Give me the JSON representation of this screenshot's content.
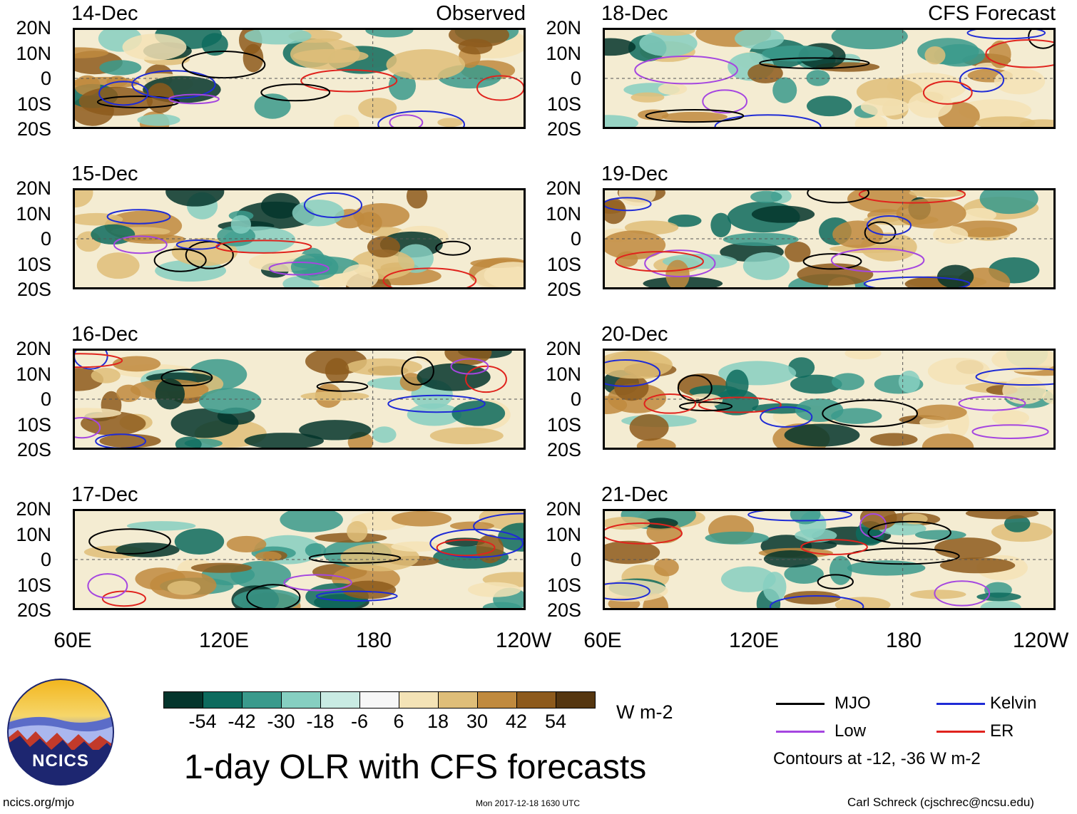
{
  "figure": {
    "title": "1-day OLR with CFS forecasts",
    "url": "ncics.org/mjo",
    "timestamp": "Mon 2017-12-18 1630 UTC",
    "author": "Carl Schreck (cjschrec@ncsu.edu)",
    "logo_text": "NCICS"
  },
  "columns": {
    "left_label": "Observed",
    "right_label": "CFS Forecast"
  },
  "panels_left": [
    {
      "date": "14-Dec"
    },
    {
      "date": "15-Dec"
    },
    {
      "date": "16-Dec"
    },
    {
      "date": "17-Dec"
    }
  ],
  "panels_right": [
    {
      "date": "18-Dec"
    },
    {
      "date": "19-Dec"
    },
    {
      "date": "20-Dec"
    },
    {
      "date": "21-Dec"
    }
  ],
  "axes": {
    "y_ticks": [
      "20N",
      "10N",
      "0",
      "10S",
      "20S"
    ],
    "x_ticks": [
      "60E",
      "120E",
      "180",
      "120W"
    ]
  },
  "colorbar": {
    "unit": "W m-2",
    "labels": [
      "-54",
      "-42",
      "-30",
      "-18",
      "-6",
      "6",
      "18",
      "30",
      "42",
      "54"
    ],
    "colors": [
      "#04352c",
      "#0d6b5e",
      "#3a9a8c",
      "#86cfc1",
      "#c9ebe3",
      "#f7f7f7",
      "#f4e3b6",
      "#dfbe79",
      "#c08a3e",
      "#8d5a1c",
      "#553610"
    ]
  },
  "legend": {
    "items": [
      {
        "label": "MJO",
        "color": "#000000"
      },
      {
        "label": "Kelvin",
        "color": "#1f2bd6"
      },
      {
        "label": "Low",
        "color": "#a546e0"
      },
      {
        "label": "ER",
        "color": "#e0231d"
      }
    ],
    "note": "Contours at -12, -36 W m-2"
  }
}
